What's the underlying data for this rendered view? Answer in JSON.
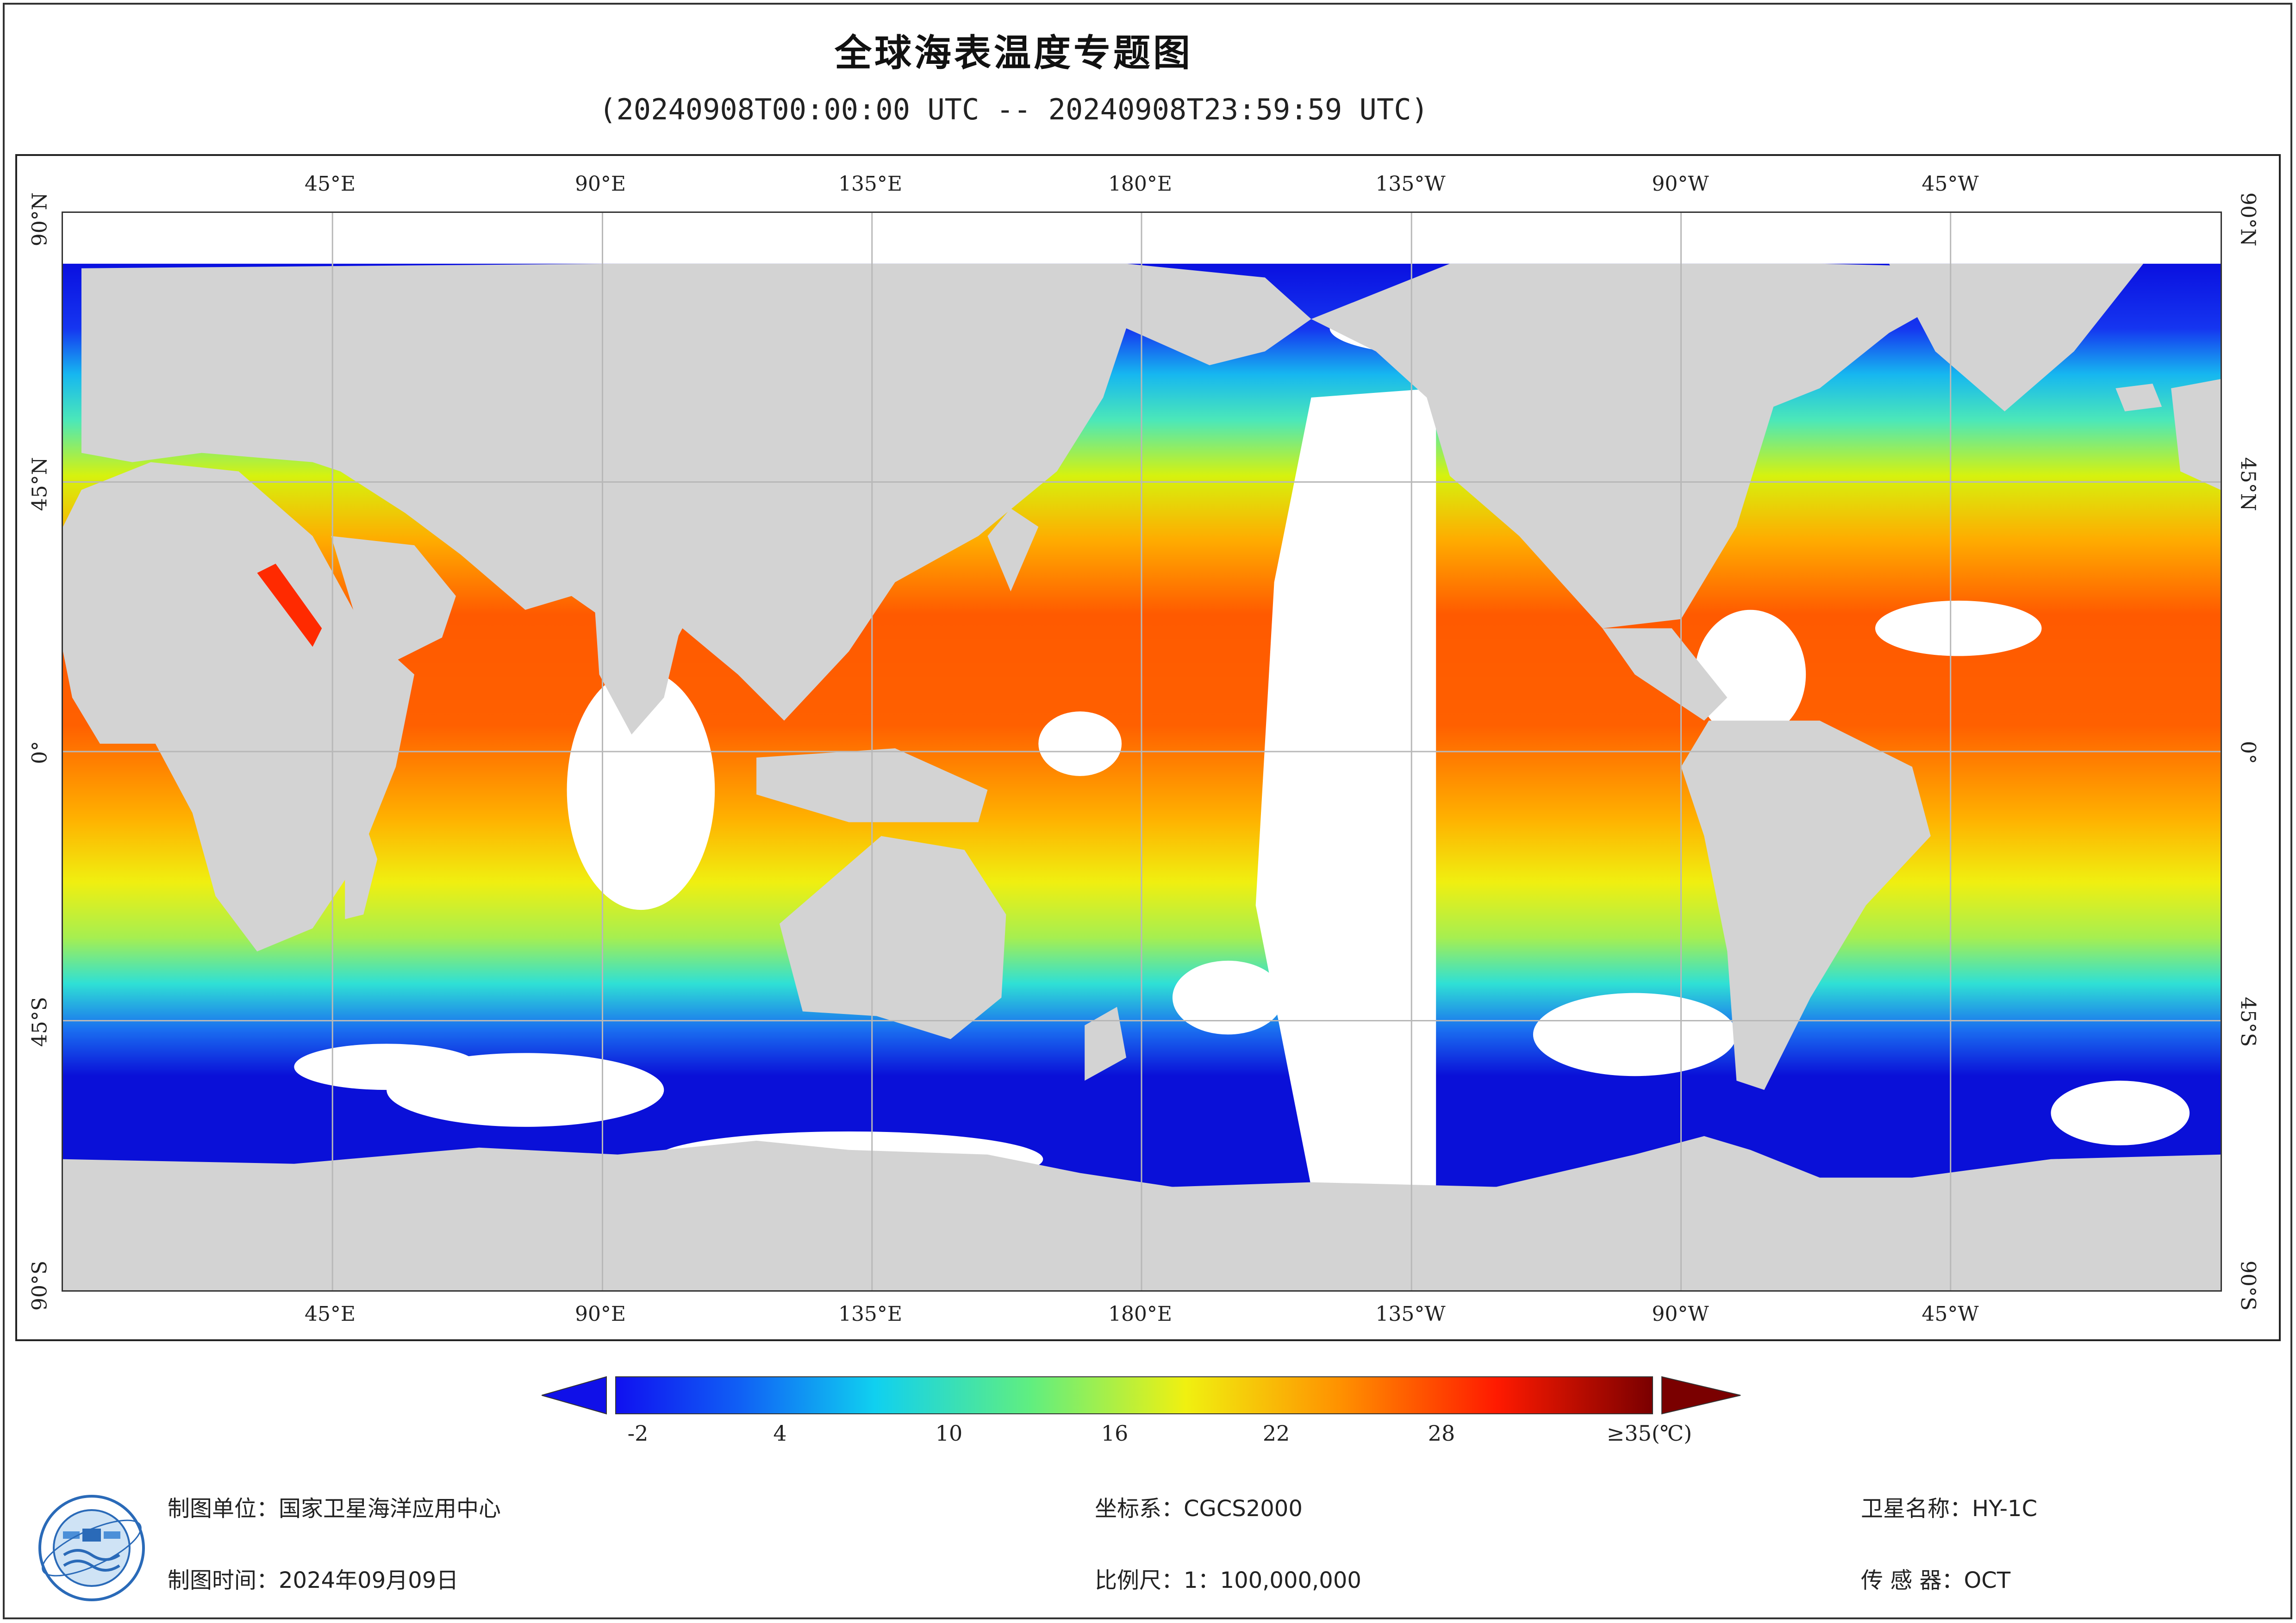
{
  "title": "全球海表温度专题图",
  "subtitle": "(20240908T00:00:00 UTC -- 20240908T23:59:59 UTC)",
  "map": {
    "top_lon_labels": [
      "45°E",
      "90°E",
      "135°E",
      "180°E",
      "135°W",
      "90°W",
      "45°W"
    ],
    "bottom_lon_labels": [
      "45°E",
      "90°E",
      "135°E",
      "180°E",
      "135°W",
      "90°W",
      "45°W"
    ],
    "lat_labels": [
      "90°N",
      "45°N",
      "0°",
      "45°S",
      "90°S"
    ],
    "land_color": "#d3d3d3",
    "no_data_color": "#ffffff",
    "grid_color": "#b8b8b8"
  },
  "legend": {
    "tick_labels": [
      "-2",
      "4",
      "10",
      "16",
      "22",
      "28",
      "≥35(℃)"
    ],
    "min_value": -2,
    "max_value": 35,
    "unit": "℃",
    "under_color": "#1010e8",
    "over_color": "#7a0000"
  },
  "footer": {
    "producer": "制图单位：国家卫星海洋应用中心",
    "date": "制图时间：2024年09月09日",
    "crs": "坐标系：CGCS2000",
    "scale": "比例尺：1：100,000,000",
    "satellite": "卫星名称：HY-1C",
    "sensor": "传  感  器：OCT"
  },
  "logo": {
    "icon": "nsoas-logo-icon"
  }
}
